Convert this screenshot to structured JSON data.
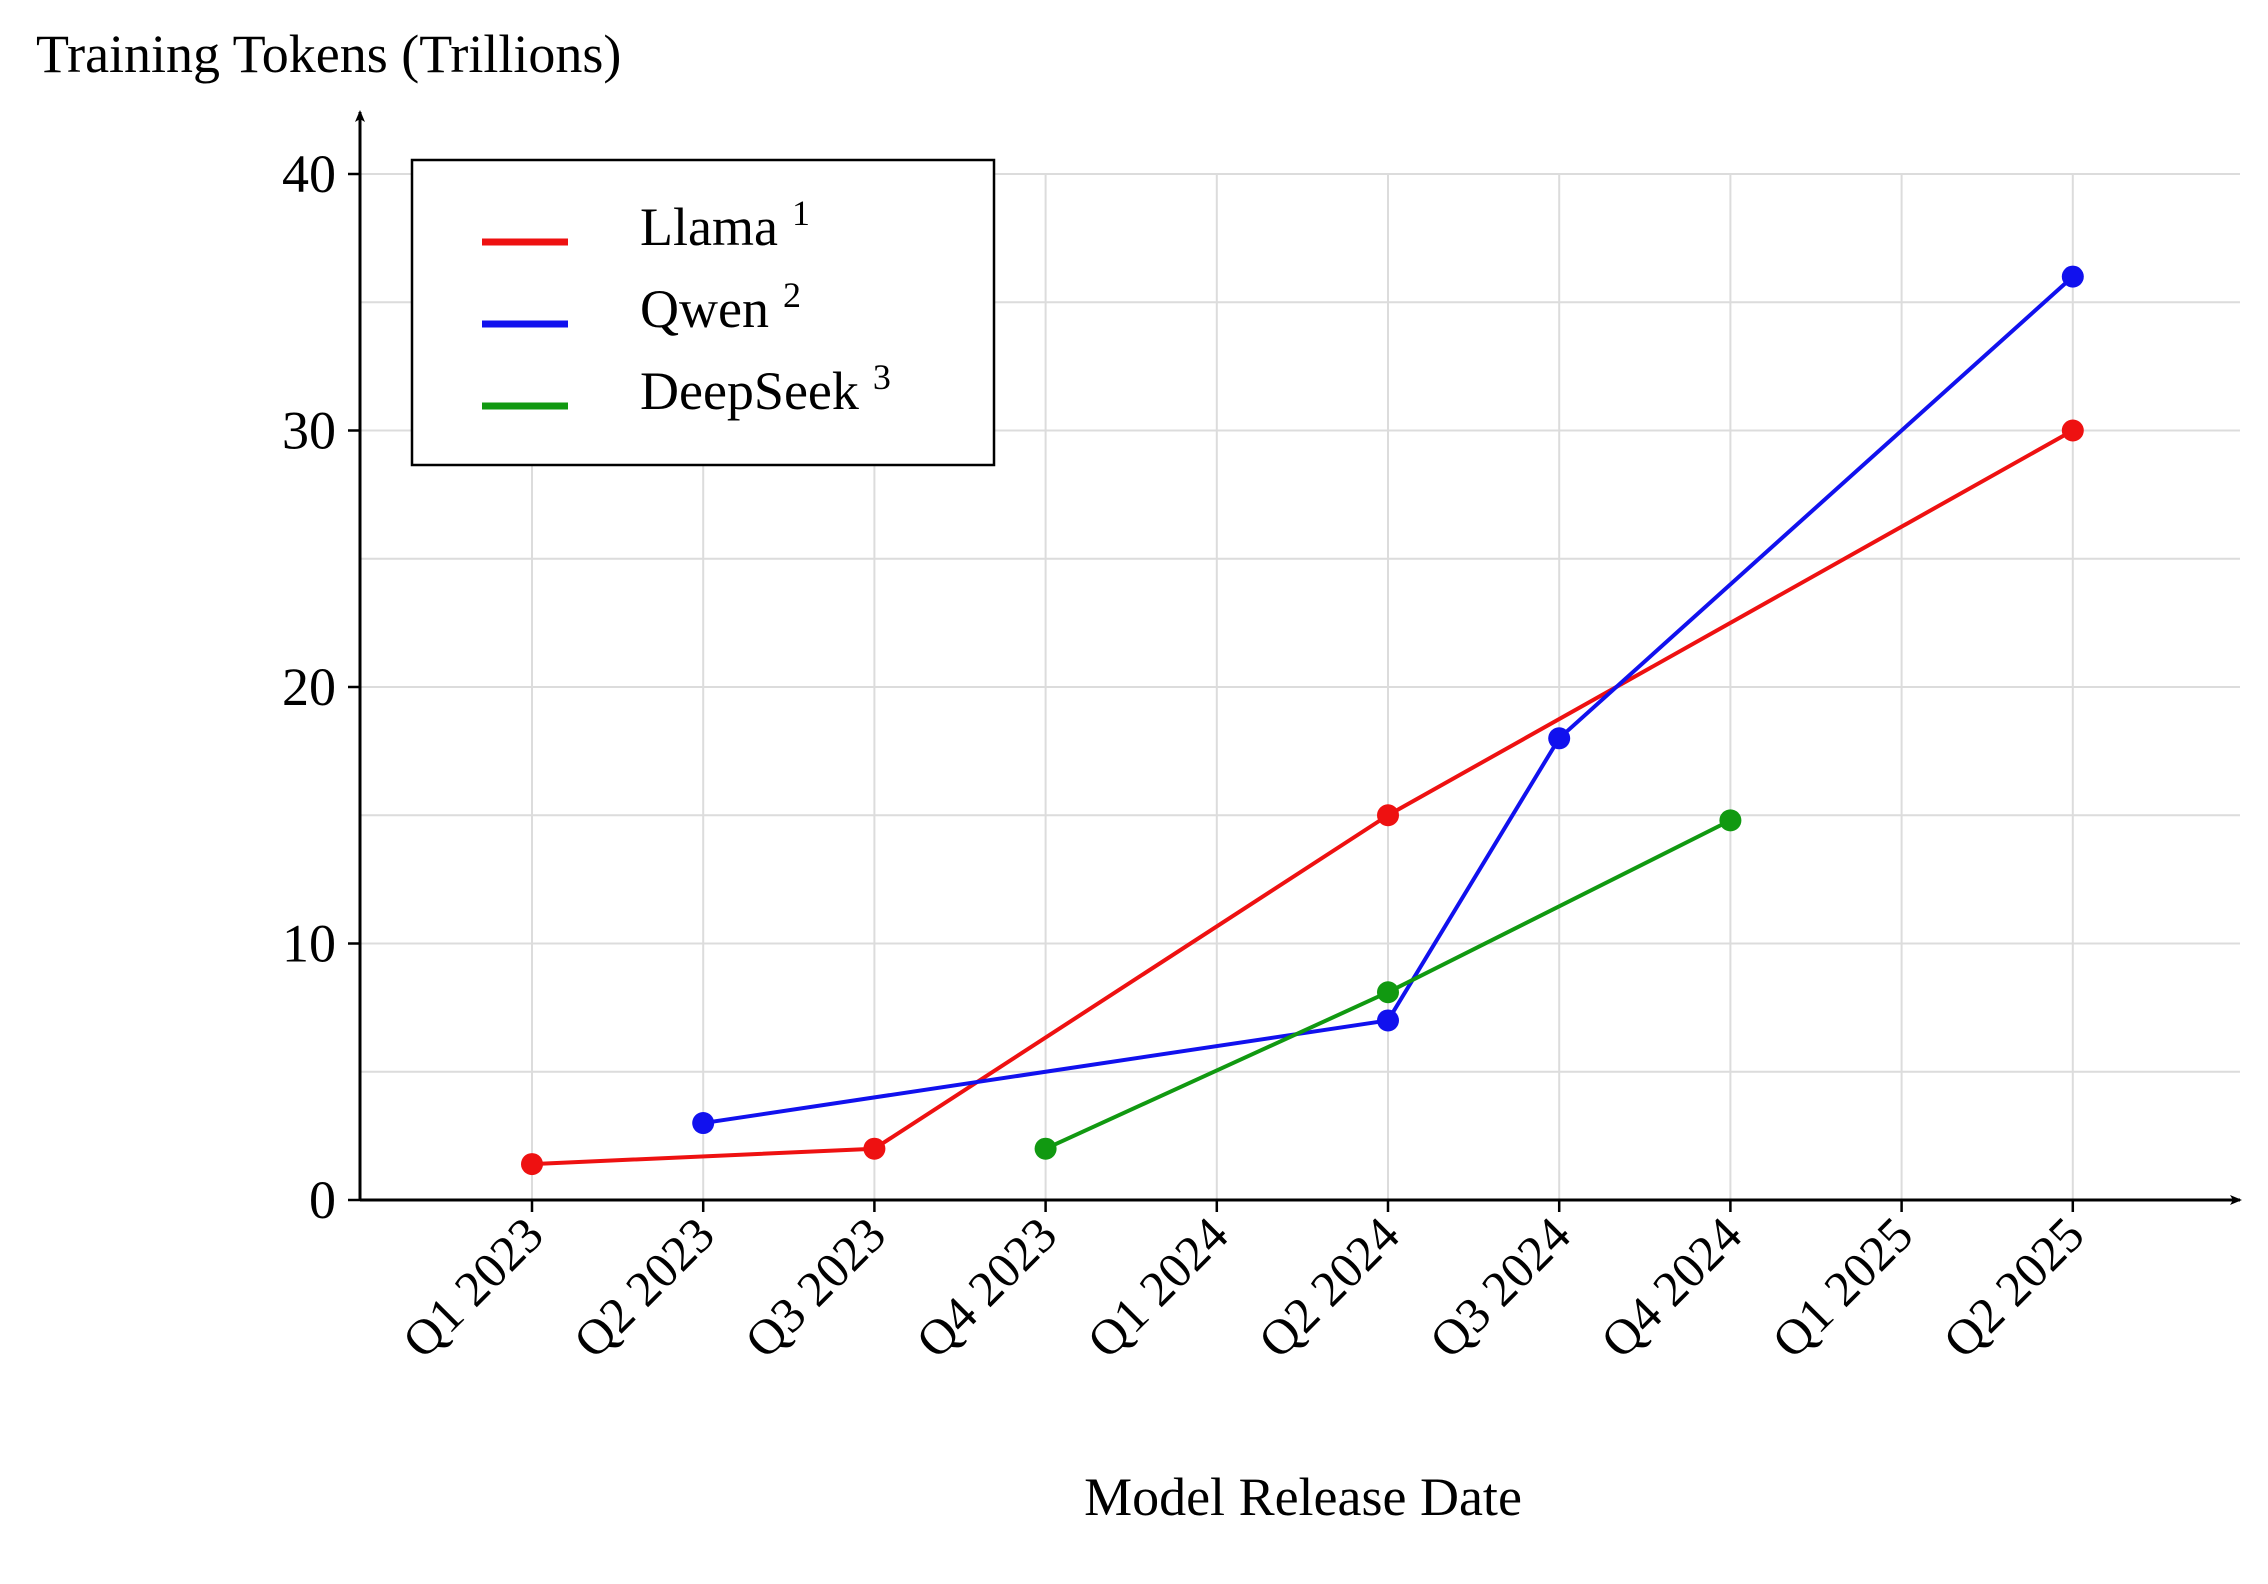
{
  "chart_data": {
    "type": "line",
    "ylabel": "Training Tokens (Trillions)",
    "xlabel": "Model Release Date",
    "categories": [
      "Q1 2023",
      "Q2 2023",
      "Q3 2023",
      "Q4 2023",
      "Q1 2024",
      "Q2 2024",
      "Q3 2024",
      "Q4 2024",
      "Q1 2025",
      "Q2 2025"
    ],
    "ylim": [
      0,
      40
    ],
    "yticks": [
      0,
      10,
      20,
      30,
      40
    ],
    "grid": true,
    "legend_position": "top-left",
    "series": [
      {
        "name": "Llama",
        "footnote": "1",
        "color": "#ee1111",
        "points": [
          {
            "x": "Q1 2023",
            "y": 1.4
          },
          {
            "x": "Q3 2023",
            "y": 2
          },
          {
            "x": "Q2 2024",
            "y": 15
          },
          {
            "x": "Q2 2025",
            "y": 30
          }
        ]
      },
      {
        "name": "Qwen",
        "footnote": "2",
        "color": "#1111ee",
        "points": [
          {
            "x": "Q2 2023",
            "y": 3
          },
          {
            "x": "Q2 2024",
            "y": 7
          },
          {
            "x": "Q3 2024",
            "y": 18
          },
          {
            "x": "Q2 2025",
            "y": 36
          }
        ]
      },
      {
        "name": "DeepSeek",
        "footnote": "3",
        "color": "#119911",
        "points": [
          {
            "x": "Q4 2023",
            "y": 2
          },
          {
            "x": "Q2 2024",
            "y": 8.1
          },
          {
            "x": "Q4 2024",
            "y": 14.8
          }
        ]
      }
    ]
  }
}
